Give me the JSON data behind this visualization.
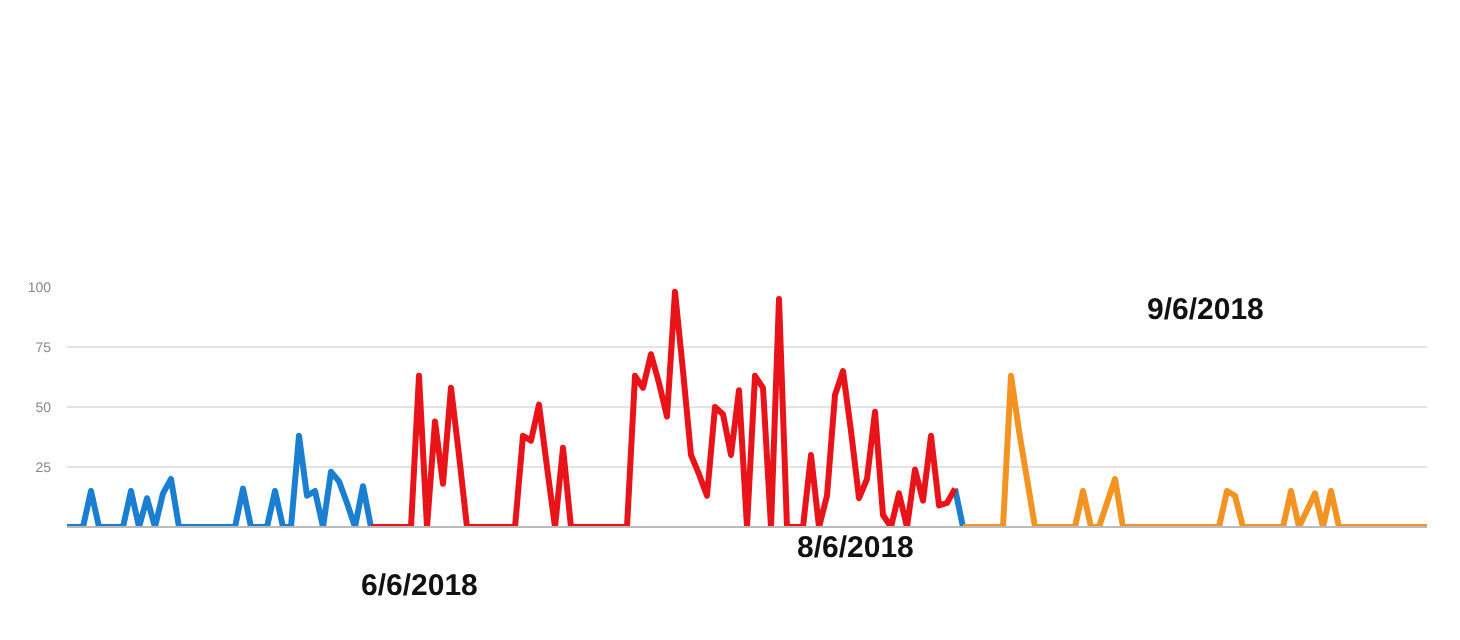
{
  "chart_data": {
    "type": "line",
    "categories": [
      null,
      null,
      null,
      null,
      null,
      null,
      null,
      null,
      null,
      null,
      null,
      null,
      null,
      null,
      null,
      null,
      null,
      null,
      null,
      null,
      null,
      null,
      null,
      null,
      null,
      null,
      null,
      null,
      null,
      null,
      null,
      null,
      null,
      null,
      null,
      null,
      null,
      null,
      null,
      null,
      null,
      null,
      null,
      null,
      null,
      null,
      null,
      null,
      null,
      null,
      null,
      null,
      null,
      null,
      null,
      null,
      null,
      null,
      null,
      null,
      null,
      null,
      null,
      null,
      null,
      null,
      null,
      null,
      null,
      null,
      null,
      null,
      null,
      null,
      null,
      null,
      null,
      null,
      null,
      null,
      null,
      null,
      null,
      null,
      null,
      null,
      null,
      null,
      null,
      null,
      null,
      null,
      null,
      null,
      null,
      null,
      null,
      null,
      null,
      null,
      null,
      null,
      null,
      null,
      null,
      null,
      null,
      null,
      null,
      null,
      null,
      null,
      null,
      null,
      null,
      null,
      null,
      null,
      null,
      null,
      null,
      null,
      null,
      null,
      null,
      null,
      null,
      null,
      null,
      null,
      null,
      null,
      null,
      null,
      null,
      null,
      null,
      null,
      null,
      null,
      null,
      null,
      null,
      null,
      null,
      null,
      null,
      null,
      null,
      null,
      null,
      null,
      null,
      null,
      null,
      null,
      null,
      null,
      null,
      null,
      null,
      null,
      null,
      null,
      null,
      null,
      null,
      null,
      null,
      null,
      null
    ],
    "series": [
      {
        "color": "#1a7fd0",
        "values": [
          0,
          0,
          0,
          15,
          0,
          0,
          0,
          0,
          15,
          0,
          12,
          0,
          14,
          20,
          0,
          0,
          0,
          0,
          0,
          0,
          0,
          0,
          16,
          0,
          0,
          0,
          15,
          0,
          0,
          38,
          13,
          15,
          0,
          23,
          19,
          10,
          0,
          17,
          0,
          null,
          null,
          null,
          null,
          null,
          null,
          null,
          null,
          null,
          null,
          null,
          null,
          null,
          null,
          null,
          null,
          null,
          null,
          null,
          null,
          null,
          null,
          null,
          null,
          null,
          null,
          null,
          null,
          null,
          null,
          null,
          null,
          null,
          null,
          null,
          null,
          null,
          null,
          null,
          null,
          null,
          null,
          null,
          null,
          null,
          null,
          null,
          null,
          null,
          null,
          null,
          null,
          null,
          null,
          null,
          null,
          null,
          null,
          null,
          null,
          null,
          null,
          null,
          null,
          null,
          null,
          null,
          null,
          null,
          null,
          null,
          null,
          16,
          0,
          null,
          null,
          null,
          null,
          null,
          null,
          null,
          null,
          null,
          null,
          null,
          null,
          null,
          null,
          null,
          null,
          null,
          null,
          null,
          null,
          null,
          null,
          null,
          null,
          null,
          null,
          null,
          null,
          null,
          null,
          null,
          null,
          null,
          null,
          null,
          null,
          null,
          null,
          null,
          null,
          null,
          null,
          null,
          null,
          null,
          null,
          null,
          null,
          null,
          null,
          null,
          null,
          null,
          null,
          null,
          null,
          null,
          null
        ]
      },
      {
        "color": "#e8141a",
        "values": [
          null,
          null,
          null,
          null,
          null,
          null,
          null,
          null,
          null,
          null,
          null,
          null,
          null,
          null,
          null,
          null,
          null,
          null,
          null,
          null,
          null,
          null,
          null,
          null,
          null,
          null,
          null,
          null,
          null,
          null,
          null,
          null,
          null,
          null,
          null,
          null,
          null,
          null,
          0,
          0,
          0,
          0,
          0,
          0,
          63,
          0,
          44,
          18,
          58,
          30,
          0,
          0,
          0,
          0,
          0,
          0,
          0,
          38,
          36,
          51,
          25,
          0,
          33,
          0,
          0,
          0,
          0,
          0,
          0,
          0,
          0,
          63,
          58,
          72,
          60,
          46,
          98,
          65,
          30,
          22,
          13,
          50,
          47,
          30,
          57,
          0,
          63,
          58,
          0,
          95,
          0,
          0,
          0,
          30,
          0,
          13,
          55,
          65,
          40,
          12,
          20,
          48,
          5,
          0,
          14,
          0,
          24,
          11,
          38,
          9,
          10,
          16,
          null,
          null,
          null,
          null,
          null,
          null,
          null,
          null,
          null,
          null,
          null,
          null,
          null,
          null,
          null,
          null,
          null,
          null,
          null,
          null,
          null,
          null,
          null,
          null,
          null,
          null,
          null,
          null,
          null,
          null,
          null,
          null,
          null,
          null,
          null,
          null,
          null,
          null,
          null,
          null,
          null,
          null,
          null,
          null,
          null,
          null,
          null,
          null,
          null,
          null,
          null,
          null,
          null,
          null,
          null,
          null,
          null,
          null,
          null
        ]
      },
      {
        "color": "#f39322",
        "values": [
          null,
          null,
          null,
          null,
          null,
          null,
          null,
          null,
          null,
          null,
          null,
          null,
          null,
          null,
          null,
          null,
          null,
          null,
          null,
          null,
          null,
          null,
          null,
          null,
          null,
          null,
          null,
          null,
          null,
          null,
          null,
          null,
          null,
          null,
          null,
          null,
          null,
          null,
          null,
          null,
          null,
          null,
          null,
          null,
          null,
          null,
          null,
          null,
          null,
          null,
          null,
          null,
          null,
          null,
          null,
          null,
          null,
          null,
          null,
          null,
          null,
          null,
          null,
          null,
          null,
          null,
          null,
          null,
          null,
          null,
          null,
          null,
          null,
          null,
          null,
          null,
          null,
          null,
          null,
          null,
          null,
          null,
          null,
          null,
          null,
          null,
          null,
          null,
          null,
          null,
          null,
          null,
          null,
          null,
          null,
          null,
          null,
          null,
          null,
          null,
          null,
          null,
          null,
          null,
          null,
          null,
          null,
          null,
          null,
          null,
          null,
          null,
          0,
          0,
          0,
          0,
          0,
          0,
          63,
          40,
          20,
          0,
          0,
          0,
          0,
          0,
          0,
          15,
          0,
          0,
          10,
          20,
          0,
          0,
          0,
          0,
          0,
          0,
          0,
          0,
          0,
          0,
          0,
          0,
          0,
          15,
          13,
          0,
          0,
          0,
          0,
          0,
          0,
          15,
          0,
          7,
          14,
          0,
          15,
          0,
          0,
          0,
          0,
          0,
          0,
          0,
          0,
          0,
          0,
          0,
          0
        ]
      }
    ],
    "ylim": [
      0,
      100
    ],
    "yticks": [
      25,
      50,
      75,
      100
    ],
    "grid": "y",
    "line_style": "solid",
    "annotations": [
      "6/6/2018",
      "8/6/2018",
      "9/6/2018"
    ]
  }
}
